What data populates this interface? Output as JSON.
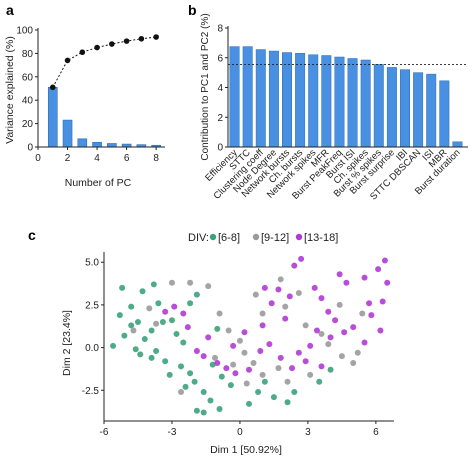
{
  "panels": {
    "a": "a",
    "b": "b",
    "c": "c"
  },
  "colors": {
    "bar": "#4a90e2",
    "bar_edge": "#2b6cb0",
    "line": "#111111",
    "div_6_8": "#3aa37a",
    "div_9_12": "#9a9a9a",
    "div_13_18": "#b03ad6"
  },
  "chart_data": [
    {
      "type": "bar",
      "panel": "a",
      "xlabel": "Number of PC",
      "ylabel": "Variance explained (%)",
      "xlim": [
        0,
        8.6
      ],
      "ylim": [
        0,
        100
      ],
      "xticks": [
        0,
        2,
        4,
        6,
        8
      ],
      "yticks": [
        0,
        20,
        40,
        60,
        80,
        100
      ],
      "grid": false,
      "bars": {
        "x": [
          1,
          2,
          3,
          4,
          5,
          6,
          7,
          8
        ],
        "values": [
          51,
          23,
          7,
          4,
          3,
          2.5,
          2,
          1.5
        ]
      },
      "cumulative": {
        "x": [
          1,
          2,
          3,
          4,
          5,
          6,
          7,
          8
        ],
        "values": [
          51,
          74,
          81,
          85,
          88,
          90.5,
          92.5,
          94
        ]
      }
    },
    {
      "type": "bar",
      "panel": "b",
      "ylabel": "Contribution to PC1 and PC2 (%)",
      "ylim": [
        0,
        8
      ],
      "yticks": [
        0,
        2,
        4,
        6,
        8
      ],
      "reference_line": 5.55,
      "grid": false,
      "categories": [
        "Efficiency",
        "STTC",
        "Clustering coeff",
        "Node Degree",
        "Network bursts",
        "Ch. bursts",
        "Network spikes",
        "MFR",
        "Burst PeakFreq",
        "Burst ISI",
        "Ch. spikes",
        "Burst % spikes",
        "Burst surprise",
        "IBI",
        "STTC DBSCAN",
        "ISI",
        "MBR",
        "Burst duration"
      ],
      "values": [
        6.75,
        6.75,
        6.55,
        6.45,
        6.35,
        6.3,
        6.2,
        6.15,
        6.05,
        5.95,
        5.85,
        5.55,
        5.35,
        5.2,
        5.0,
        4.9,
        4.45,
        0.35
      ]
    },
    {
      "type": "scatter",
      "panel": "c",
      "xlabel": "Dim 1 [50.92%]",
      "ylabel": "Dim 2 [23.4%]",
      "xlim": [
        -6,
        6.8
      ],
      "ylim": [
        -4.3,
        5.6
      ],
      "xticks": [
        -6,
        -3,
        0,
        3,
        6
      ],
      "yticks": [
        -2.5,
        0.0,
        2.5,
        5.0
      ],
      "ytick_labels": [
        "-2.5",
        "0.0",
        "2.5",
        "5.0"
      ],
      "grid": false,
      "legend_placement": "top-center",
      "legend_title": "DIV:",
      "series": [
        {
          "name": "[6-8]",
          "points": [
            [
              -5.2,
              3.5
            ],
            [
              -4.3,
              3.3
            ],
            [
              -3.8,
              3.7
            ],
            [
              -3.6,
              2.6
            ],
            [
              -5.3,
              1.9
            ],
            [
              -4.8,
              2.4
            ],
            [
              -4.5,
              1.5
            ],
            [
              -3.9,
              1.0
            ],
            [
              -5.1,
              0.7
            ],
            [
              -4.8,
              1.3
            ],
            [
              -4.2,
              0.5
            ],
            [
              -3.7,
              -0.2
            ],
            [
              -3.4,
              1.5
            ],
            [
              -3.0,
              1.6
            ],
            [
              -2.8,
              0.8
            ],
            [
              -2.5,
              0.3
            ],
            [
              -4.4,
              -0.4
            ],
            [
              -3.9,
              -0.6
            ],
            [
              -3.3,
              -0.8
            ],
            [
              -3.1,
              -1.6
            ],
            [
              -2.6,
              -1.1
            ],
            [
              -2.2,
              -1.5
            ],
            [
              -2.4,
              -2.3
            ],
            [
              -2.0,
              -2.0
            ],
            [
              -1.6,
              -2.6
            ],
            [
              -1.2,
              -1.0
            ],
            [
              -0.8,
              -1.7
            ],
            [
              -0.4,
              -2.2
            ],
            [
              -1.3,
              -3.1
            ],
            [
              -1.9,
              -3.7
            ],
            [
              -1.6,
              -3.8
            ],
            [
              -0.9,
              -3.6
            ],
            [
              0.4,
              -3.3
            ],
            [
              0.8,
              -2.6
            ],
            [
              1.1,
              -2.0
            ],
            [
              1.5,
              -2.9
            ],
            [
              2.1,
              -3.2
            ],
            [
              2.4,
              -2.6
            ],
            [
              3.5,
              -2.0
            ],
            [
              4.0,
              -1.3
            ],
            [
              -1.0,
              1.1
            ],
            [
              -2.2,
              2.6
            ],
            [
              -1.9,
              3.1
            ],
            [
              -5.6,
              0.1
            ],
            [
              -4.6,
              -0.1
            ]
          ]
        },
        {
          "name": "[9-12]",
          "points": [
            [
              -4.7,
              1.0
            ],
            [
              -4.0,
              2.3
            ],
            [
              -3.0,
              3.8
            ],
            [
              -2.2,
              3.8
            ],
            [
              -1.4,
              3.6
            ],
            [
              -0.9,
              2.0
            ],
            [
              -0.5,
              1.0
            ],
            [
              0.0,
              0.4
            ],
            [
              0.2,
              -0.3
            ],
            [
              -0.3,
              -1.0
            ],
            [
              0.6,
              -0.9
            ],
            [
              1.0,
              -1.6
            ],
            [
              1.7,
              -1.2
            ],
            [
              1.0,
              2.0
            ],
            [
              0.7,
              3.1
            ],
            [
              1.8,
              4.0
            ],
            [
              2.6,
              3.2
            ],
            [
              2.0,
              2.4
            ],
            [
              2.9,
              1.3
            ],
            [
              3.6,
              0.8
            ],
            [
              3.9,
              0.2
            ],
            [
              4.5,
              -0.5
            ],
            [
              5.0,
              -0.9
            ],
            [
              5.2,
              -0.3
            ],
            [
              -1.1,
              -0.6
            ],
            [
              -2.6,
              -2.6
            ],
            [
              -3.7,
              1.4
            ],
            [
              0.3,
              -2.1
            ],
            [
              2.1,
              -2.0
            ],
            [
              3.1,
              -1.6
            ],
            [
              4.4,
              2.5
            ],
            [
              5.4,
              2.0
            ]
          ]
        },
        {
          "name": "[13-18]",
          "points": [
            [
              -3.3,
              2.1
            ],
            [
              -2.9,
              2.4
            ],
            [
              -2.5,
              2.0
            ],
            [
              -2.3,
              1.2
            ],
            [
              -1.4,
              0.6
            ],
            [
              -1.9,
              -0.2
            ],
            [
              -1.6,
              -0.5
            ],
            [
              -1.0,
              -0.9
            ],
            [
              -0.6,
              -1.2
            ],
            [
              -0.2,
              -1.5
            ],
            [
              0.4,
              -1.3
            ],
            [
              0.9,
              -0.2
            ],
            [
              1.3,
              0.2
            ],
            [
              1.4,
              2.6
            ],
            [
              1.1,
              3.5
            ],
            [
              1.7,
              3.4
            ],
            [
              2.2,
              3.0
            ],
            [
              2.4,
              4.8
            ],
            [
              2.7,
              5.2
            ],
            [
              3.3,
              3.5
            ],
            [
              3.6,
              2.9
            ],
            [
              3.9,
              2.1
            ],
            [
              4.2,
              1.6
            ],
            [
              4.0,
              0.6
            ],
            [
              4.6,
              0.9
            ],
            [
              5.0,
              1.2
            ],
            [
              5.5,
              0.3
            ],
            [
              5.8,
              1.9
            ],
            [
              6.2,
              1.0
            ],
            [
              6.3,
              2.7
            ],
            [
              6.5,
              3.8
            ],
            [
              6.4,
              5.1
            ],
            [
              6.1,
              4.6
            ],
            [
              5.5,
              4.1
            ],
            [
              4.7,
              3.8
            ],
            [
              4.4,
              4.3
            ],
            [
              3.4,
              1.0
            ],
            [
              2.6,
              -0.3
            ],
            [
              2.9,
              -0.8
            ],
            [
              3.6,
              -1.1
            ],
            [
              2.3,
              -1.2
            ],
            [
              1.8,
              -0.6
            ],
            [
              3.1,
              0.1
            ],
            [
              5.7,
              2.6
            ],
            [
              -0.3,
              0.1
            ],
            [
              0.2,
              0.9
            ],
            [
              1.0,
              1.3
            ],
            [
              2.0,
              1.7
            ]
          ]
        }
      ]
    }
  ]
}
